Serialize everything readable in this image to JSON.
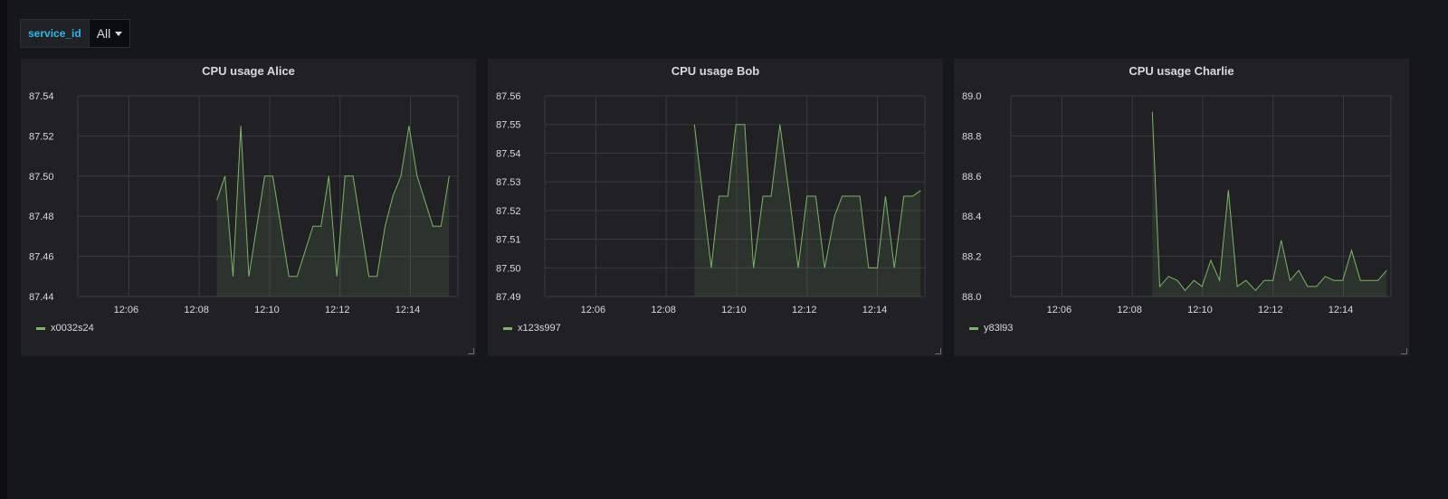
{
  "variable": {
    "name": "service_id",
    "value": "All"
  },
  "panels": [
    {
      "title": "CPU usage Alice",
      "legend": "x0032s24",
      "line_color": "#7eb26d",
      "chart_data": {
        "type": "area",
        "title": "CPU usage Alice",
        "x_tick_labels": [
          "12:06",
          "12:08",
          "12:10",
          "12:12",
          "12:14"
        ],
        "x_tick_minutes": [
          366,
          368,
          370,
          372,
          374
        ],
        "xlim": [
          364.55,
          375.35
        ],
        "y_tick_labels": [
          "87.44",
          "87.46",
          "87.48",
          "87.50",
          "87.52",
          "87.54"
        ],
        "ylim": [
          87.44,
          87.54
        ],
        "series": [
          {
            "name": "x0032s24",
            "x": [
              368.5,
              368.73,
              368.96,
              369.18,
              369.41,
              369.86,
              370.09,
              370.55,
              370.78,
              371.23,
              371.46,
              371.68,
              371.91,
              372.14,
              372.37,
              372.82,
              373.05,
              373.28,
              373.5,
              373.73,
              373.96,
              374.19,
              374.64,
              374.87,
              375.1
            ],
            "y": [
              87.488,
              87.5,
              87.45,
              87.525,
              87.45,
              87.5,
              87.5,
              87.45,
              87.45,
              87.475,
              87.475,
              87.5,
              87.45,
              87.5,
              87.5,
              87.45,
              87.45,
              87.475,
              87.49,
              87.5,
              87.525,
              87.5,
              87.475,
              87.475,
              87.5
            ]
          }
        ]
      }
    },
    {
      "title": "CPU usage Bob",
      "legend": "x123s997",
      "line_color": "#7eb26d",
      "chart_data": {
        "type": "area",
        "title": "CPU usage Bob",
        "x_tick_labels": [
          "12:06",
          "12:08",
          "12:10",
          "12:12",
          "12:14"
        ],
        "x_tick_minutes": [
          366,
          368,
          370,
          372,
          374
        ],
        "xlim": [
          364.55,
          375.35
        ],
        "y_tick_labels": [
          "87.49",
          "87.50",
          "87.51",
          "87.52",
          "87.53",
          "87.54",
          "87.55",
          "87.56"
        ],
        "ylim": [
          87.49,
          87.56
        ],
        "series": [
          {
            "name": "x123s997",
            "x": [
              368.8,
              369.28,
              369.5,
              369.75,
              369.98,
              370.23,
              370.48,
              370.75,
              370.98,
              371.23,
              371.5,
              371.75,
              372.0,
              372.25,
              372.5,
              372.78,
              373.0,
              373.25,
              373.5,
              373.75,
              374.0,
              374.23,
              374.48,
              374.75,
              375.0,
              375.23
            ],
            "y": [
              87.55,
              87.5,
              87.525,
              87.525,
              87.55,
              87.55,
              87.5,
              87.525,
              87.525,
              87.55,
              87.525,
              87.5,
              87.525,
              87.525,
              87.5,
              87.518,
              87.525,
              87.525,
              87.525,
              87.5,
              87.5,
              87.525,
              87.5,
              87.525,
              87.525,
              87.527
            ]
          }
        ]
      }
    },
    {
      "title": "CPU usage Charlie",
      "legend": "y83l93",
      "line_color": "#7eb26d",
      "chart_data": {
        "type": "area",
        "title": "CPU usage Charlie",
        "x_tick_labels": [
          "12:06",
          "12:08",
          "12:10",
          "12:12",
          "12:14"
        ],
        "x_tick_minutes": [
          366,
          368,
          370,
          372,
          374
        ],
        "xlim": [
          364.55,
          375.35
        ],
        "y_tick_labels": [
          "88.0",
          "88.2",
          "88.4",
          "88.6",
          "88.8",
          "89.0"
        ],
        "ylim": [
          88.0,
          89.0
        ],
        "series": [
          {
            "name": "y83l93",
            "x": [
              368.57,
              368.78,
              369.03,
              369.28,
              369.5,
              369.75,
              369.98,
              370.23,
              370.48,
              370.73,
              370.98,
              371.23,
              371.5,
              371.75,
              372.0,
              372.23,
              372.48,
              372.73,
              372.98,
              373.23,
              373.48,
              373.73,
              373.98,
              374.23,
              374.48,
              374.73,
              374.98,
              375.23
            ],
            "y": [
              88.92,
              88.05,
              88.1,
              88.08,
              88.03,
              88.08,
              88.05,
              88.18,
              88.08,
              88.53,
              88.05,
              88.08,
              88.03,
              88.08,
              88.08,
              88.28,
              88.08,
              88.13,
              88.05,
              88.05,
              88.1,
              88.08,
              88.08,
              88.23,
              88.08,
              88.08,
              88.08,
              88.13
            ]
          }
        ]
      }
    }
  ]
}
